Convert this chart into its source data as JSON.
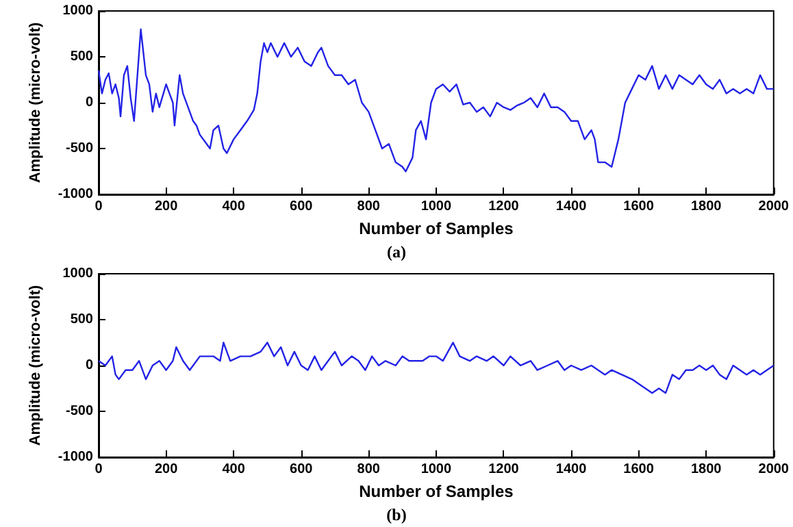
{
  "chart_data": [
    {
      "type": "line",
      "xlabel": "Number of Samples",
      "ylabel": "Amplitude (micro-volt)",
      "annotations": [
        "(a)"
      ],
      "color": "#2323e6",
      "grid": false,
      "marker": "none",
      "line_style": "solid",
      "xlim": [
        0,
        2000
      ],
      "xticks": [
        0,
        200,
        400,
        600,
        800,
        1000,
        1200,
        1400,
        1600,
        1800,
        2000
      ],
      "ylim": [
        -1000,
        1000
      ],
      "yticks": [
        -1000,
        -500,
        0,
        500,
        1000
      ],
      "x": [
        0,
        10,
        20,
        30,
        40,
        50,
        60,
        65,
        75,
        85,
        95,
        105,
        115,
        125,
        140,
        150,
        160,
        170,
        180,
        200,
        210,
        220,
        225,
        240,
        250,
        265,
        280,
        290,
        300,
        320,
        330,
        340,
        355,
        370,
        380,
        400,
        420,
        440,
        460,
        470,
        480,
        490,
        500,
        510,
        530,
        550,
        570,
        590,
        610,
        630,
        650,
        660,
        680,
        700,
        720,
        740,
        760,
        780,
        800,
        820,
        840,
        860,
        880,
        900,
        910,
        930,
        940,
        955,
        970,
        985,
        1000,
        1020,
        1040,
        1060,
        1080,
        1100,
        1120,
        1140,
        1160,
        1180,
        1200,
        1220,
        1240,
        1260,
        1280,
        1300,
        1320,
        1340,
        1360,
        1380,
        1400,
        1420,
        1440,
        1460,
        1470,
        1480,
        1500,
        1520,
        1540,
        1560,
        1580,
        1600,
        1620,
        1640,
        1660,
        1680,
        1700,
        1720,
        1740,
        1760,
        1780,
        1800,
        1820,
        1840,
        1860,
        1880,
        1900,
        1920,
        1940,
        1960,
        1980,
        2000
      ],
      "values": [
        350,
        100,
        250,
        320,
        100,
        200,
        50,
        -150,
        300,
        400,
        50,
        -200,
        300,
        800,
        300,
        200,
        -100,
        100,
        -50,
        200,
        100,
        0,
        -250,
        300,
        100,
        -50,
        -200,
        -250,
        -350,
        -450,
        -500,
        -300,
        -250,
        -500,
        -550,
        -400,
        -300,
        -200,
        -80,
        100,
        450,
        650,
        550,
        650,
        500,
        650,
        500,
        600,
        450,
        400,
        550,
        600,
        400,
        300,
        300,
        200,
        250,
        0,
        -100,
        -300,
        -500,
        -450,
        -650,
        -700,
        -750,
        -600,
        -300,
        -200,
        -400,
        0,
        150,
        200,
        120,
        200,
        -20,
        0,
        -100,
        -50,
        -150,
        0,
        -50,
        -80,
        -30,
        0,
        50,
        -50,
        100,
        -50,
        -50,
        -100,
        -200,
        -200,
        -400,
        -300,
        -400,
        -650,
        -650,
        -700,
        -400,
        0,
        150,
        300,
        250,
        400,
        150,
        300,
        150,
        300,
        250,
        200,
        300,
        200,
        150,
        250,
        100,
        150,
        100,
        150,
        100,
        300,
        150,
        150
      ]
    },
    {
      "type": "line",
      "xlabel": "Number of Samples",
      "ylabel": "Amplitude (micro-volt)",
      "annotations": [
        "(b)"
      ],
      "color": "#2323e6",
      "grid": false,
      "marker": "none",
      "line_style": "solid",
      "xlim": [
        0,
        2000
      ],
      "xticks": [
        0,
        200,
        400,
        600,
        800,
        1000,
        1200,
        1400,
        1600,
        1800,
        2000
      ],
      "ylim": [
        -1000,
        1000
      ],
      "yticks": [
        -1000,
        -500,
        0,
        500,
        1000
      ],
      "x": [
        0,
        20,
        40,
        50,
        60,
        80,
        100,
        120,
        140,
        160,
        180,
        200,
        220,
        230,
        250,
        270,
        300,
        340,
        360,
        370,
        390,
        420,
        450,
        480,
        500,
        520,
        540,
        560,
        580,
        600,
        620,
        640,
        660,
        680,
        700,
        720,
        750,
        770,
        790,
        810,
        830,
        850,
        880,
        900,
        920,
        940,
        960,
        980,
        1000,
        1020,
        1050,
        1070,
        1100,
        1120,
        1150,
        1170,
        1200,
        1220,
        1250,
        1280,
        1300,
        1330,
        1360,
        1380,
        1400,
        1430,
        1460,
        1480,
        1500,
        1520,
        1550,
        1580,
        1600,
        1620,
        1640,
        1660,
        1680,
        1700,
        1720,
        1740,
        1760,
        1780,
        1800,
        1820,
        1840,
        1860,
        1880,
        1900,
        1920,
        1940,
        1960,
        1980,
        2000
      ],
      "values": [
        50,
        0,
        100,
        -100,
        -150,
        -50,
        -50,
        50,
        -150,
        0,
        50,
        -50,
        50,
        200,
        50,
        -50,
        100,
        100,
        50,
        250,
        50,
        100,
        100,
        150,
        250,
        100,
        200,
        0,
        150,
        0,
        -50,
        100,
        -50,
        50,
        150,
        0,
        100,
        50,
        -50,
        100,
        0,
        50,
        0,
        100,
        50,
        50,
        50,
        100,
        100,
        50,
        250,
        100,
        50,
        100,
        50,
        100,
        0,
        100,
        0,
        50,
        -50,
        0,
        50,
        -50,
        0,
        -50,
        0,
        -50,
        -100,
        -50,
        -100,
        -150,
        -200,
        -250,
        -300,
        -250,
        -300,
        -100,
        -150,
        -50,
        -50,
        0,
        -50,
        0,
        -100,
        -150,
        0,
        -50,
        -100,
        -50,
        -100,
        -50,
        0
      ]
    }
  ]
}
